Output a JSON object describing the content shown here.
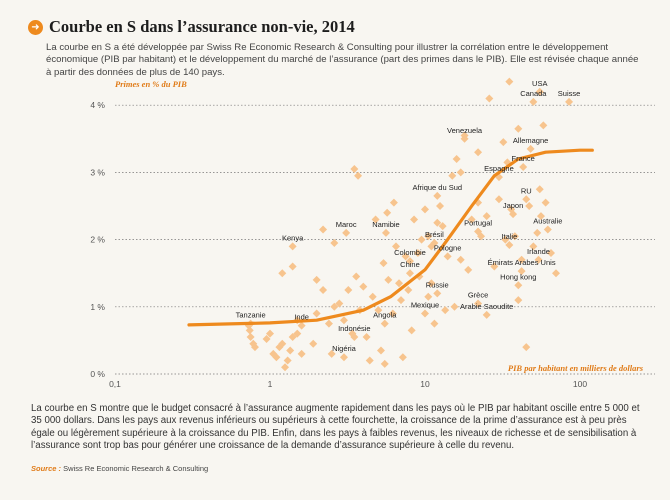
{
  "header": {
    "icon": "arrow-right-circle-icon",
    "title": "Courbe en S dans l’assurance non-vie, 2014",
    "intro": "La courbe en S a été développée par Swiss Re Economic Research & Consulting pour illustrer la corrélation entre le développement économique (PIB par habitant) et le développement du marché de l’assurance (part des primes dans le PIB). Elle est révisée chaque année à partir des données de plus de 140 pays."
  },
  "footer": {
    "text": "La courbe en S montre que le budget consacré à l’assurance augmente rapidement dans les pays où le PIB par habitant oscille entre 5 000 et 35 000 dollars. Dans les pays aux revenus inférieurs ou supérieurs à cette fourchette, la croissance de la prime d’assurance est à peu près égale ou légèrement supérieure à la croissance du PIB. Enfin, dans les pays à faibles revenus, les niveaux de richesse et de sensibilisation à l’assurance sont trop bas pour générer une croissance de la demande d’assurance supérieure à celle du revenu.",
    "source_label": "Source :",
    "source_text": "Swiss Re Economic Research & Consulting"
  },
  "colors": {
    "accent": "#ee8a1e",
    "points": "#f7c48e",
    "curve": "#ee8a1e",
    "grid": "#777777"
  },
  "chart_data": {
    "type": "scatter",
    "title": "Courbe en S dans l’assurance non-vie, 2014",
    "xlabel": "PIB par habitant en milliers de dollars",
    "ylabel": "Primes en % du PIB",
    "xscale": "log",
    "xlim": [
      0.1,
      200
    ],
    "ylim": [
      0,
      4.3
    ],
    "xticks": [
      {
        "v": 0.1,
        "label": "0,1"
      },
      {
        "v": 1,
        "label": "1"
      },
      {
        "v": 10,
        "label": "10"
      },
      {
        "v": 100,
        "label": "100"
      }
    ],
    "yticks": [
      {
        "v": 0,
        "label": "0 %"
      },
      {
        "v": 1,
        "label": "1 %"
      },
      {
        "v": 2,
        "label": "2 %"
      },
      {
        "v": 3,
        "label": "3 %"
      },
      {
        "v": 4,
        "label": "4 %"
      }
    ],
    "grid": "horizontal dashed",
    "curve": [
      [
        0.3,
        0.73
      ],
      [
        1,
        0.76
      ],
      [
        2,
        0.8
      ],
      [
        4,
        0.95
      ],
      [
        6,
        1.15
      ],
      [
        10,
        1.55
      ],
      [
        14,
        2.0
      ],
      [
        20,
        2.5
      ],
      [
        28,
        2.95
      ],
      [
        40,
        3.2
      ],
      [
        60,
        3.3
      ],
      [
        100,
        3.33
      ],
      [
        120,
        3.33
      ]
    ],
    "labeled_points": [
      {
        "name": "USA",
        "x": 55,
        "y": 4.2
      },
      {
        "name": "Canada",
        "x": 50,
        "y": 4.05
      },
      {
        "name": "Suisse",
        "x": 85,
        "y": 4.05
      },
      {
        "name": "Venezuela",
        "x": 18,
        "y": 3.5
      },
      {
        "name": "Allemagne",
        "x": 48,
        "y": 3.35
      },
      {
        "name": "France",
        "x": 43,
        "y": 3.08
      },
      {
        "name": "Espagne",
        "x": 30,
        "y": 2.93
      },
      {
        "name": "Afrique du Sud",
        "x": 12,
        "y": 2.65
      },
      {
        "name": "RU",
        "x": 45,
        "y": 2.6
      },
      {
        "name": "Japon",
        "x": 37,
        "y": 2.38
      },
      {
        "name": "Australie",
        "x": 62,
        "y": 2.15
      },
      {
        "name": "Maroc",
        "x": 3.1,
        "y": 2.1
      },
      {
        "name": "Namibie",
        "x": 5.6,
        "y": 2.1
      },
      {
        "name": "Portugal",
        "x": 22,
        "y": 2.12
      },
      {
        "name": "Brésil",
        "x": 11.5,
        "y": 1.95
      },
      {
        "name": "Italie",
        "x": 35,
        "y": 1.92
      },
      {
        "name": "Kenya",
        "x": 1.4,
        "y": 1.9
      },
      {
        "name": "Pologne",
        "x": 14,
        "y": 1.75
      },
      {
        "name": "Irlande",
        "x": 54,
        "y": 1.7
      },
      {
        "name": "Colombie",
        "x": 8,
        "y": 1.68
      },
      {
        "name": "Émirats Arabes Unis",
        "x": 42,
        "y": 1.53
      },
      {
        "name": "Chine",
        "x": 8,
        "y": 1.5
      },
      {
        "name": "Hong kong",
        "x": 40,
        "y": 1.32
      },
      {
        "name": "Russie",
        "x": 12,
        "y": 1.2
      },
      {
        "name": "Grèce",
        "x": 22,
        "y": 1.05
      },
      {
        "name": "Mexique",
        "x": 10,
        "y": 0.9
      },
      {
        "name": "Arabie Saoudite",
        "x": 25,
        "y": 0.88
      },
      {
        "name": "Tanzanie",
        "x": 0.75,
        "y": 0.75
      },
      {
        "name": "Inde",
        "x": 1.6,
        "y": 0.72
      },
      {
        "name": "Angola",
        "x": 5.5,
        "y": 0.75
      },
      {
        "name": "Indonésie",
        "x": 3.5,
        "y": 0.55
      },
      {
        "name": "Nigéria",
        "x": 3,
        "y": 0.25
      }
    ],
    "unlabeled_points": [
      [
        0.73,
        0.72
      ],
      [
        0.74,
        0.65
      ],
      [
        0.75,
        0.55
      ],
      [
        0.78,
        0.45
      ],
      [
        0.8,
        0.4
      ],
      [
        0.95,
        0.52
      ],
      [
        1.0,
        0.6
      ],
      [
        1.05,
        0.3
      ],
      [
        1.1,
        0.25
      ],
      [
        1.15,
        0.4
      ],
      [
        1.2,
        0.45
      ],
      [
        1.25,
        0.1
      ],
      [
        1.3,
        0.2
      ],
      [
        1.35,
        0.35
      ],
      [
        1.4,
        0.55
      ],
      [
        1.5,
        0.8
      ],
      [
        1.5,
        0.6
      ],
      [
        1.6,
        0.3
      ],
      [
        1.9,
        0.45
      ],
      [
        2.0,
        0.9
      ],
      [
        2.2,
        1.25
      ],
      [
        2.4,
        0.75
      ],
      [
        2.6,
        1.0
      ],
      [
        2.8,
        1.05
      ],
      [
        3.0,
        0.8
      ],
      [
        3.2,
        1.25
      ],
      [
        3.4,
        0.6
      ],
      [
        3.6,
        1.45
      ],
      [
        3.8,
        0.95
      ],
      [
        4.0,
        1.3
      ],
      [
        4.2,
        0.55
      ],
      [
        4.4,
        0.2
      ],
      [
        4.6,
        1.15
      ],
      [
        5.0,
        0.95
      ],
      [
        5.2,
        0.35
      ],
      [
        5.4,
        1.65
      ],
      [
        5.5,
        0.15
      ],
      [
        5.8,
        1.4
      ],
      [
        6.2,
        0.9
      ],
      [
        6.5,
        1.9
      ],
      [
        6.8,
        1.35
      ],
      [
        7.2,
        0.25
      ],
      [
        7.5,
        1.75
      ],
      [
        8.5,
        2.3
      ],
      [
        9.0,
        1.8
      ],
      [
        9.5,
        2.0
      ],
      [
        10.0,
        2.45
      ],
      [
        10.5,
        1.15
      ],
      [
        11.0,
        1.9
      ],
      [
        11.5,
        0.75
      ],
      [
        12.5,
        2.5
      ],
      [
        13.0,
        2.2
      ],
      [
        13.5,
        0.95
      ],
      [
        15.0,
        2.95
      ],
      [
        16.0,
        3.2
      ],
      [
        17.0,
        1.7
      ],
      [
        18.0,
        3.55
      ],
      [
        19.0,
        1.55
      ],
      [
        20.0,
        2.3
      ],
      [
        22.0,
        2.55
      ],
      [
        23.0,
        2.05
      ],
      [
        25.0,
        2.35
      ],
      [
        26.0,
        4.1
      ],
      [
        28.0,
        1.6
      ],
      [
        30.0,
        2.6
      ],
      [
        32.0,
        3.45
      ],
      [
        33.0,
        2.0
      ],
      [
        34.0,
        3.15
      ],
      [
        36.0,
        2.45
      ],
      [
        38.0,
        2.05
      ],
      [
        40.0,
        3.65
      ],
      [
        42.0,
        1.7
      ],
      [
        45.0,
        0.4
      ],
      [
        47.0,
        2.5
      ],
      [
        50.0,
        1.9
      ],
      [
        53.0,
        2.1
      ],
      [
        56.0,
        2.35
      ],
      [
        58.0,
        3.7
      ],
      [
        60.0,
        2.55
      ],
      [
        65.0,
        1.8
      ],
      [
        70.0,
        1.5
      ],
      [
        22.0,
        3.3
      ],
      [
        17.0,
        3.0
      ],
      [
        3.5,
        3.05
      ],
      [
        3.7,
        2.95
      ],
      [
        2.2,
        2.15
      ],
      [
        2.6,
        1.95
      ],
      [
        1.2,
        1.5
      ],
      [
        1.4,
        1.6
      ],
      [
        4.8,
        2.3
      ],
      [
        5.7,
        2.4
      ],
      [
        6.3,
        2.55
      ],
      [
        7.0,
        1.1
      ],
      [
        7.8,
        1.25
      ],
      [
        8.2,
        0.65
      ],
      [
        9.2,
        1.45
      ],
      [
        2.0,
        1.4
      ],
      [
        2.5,
        0.3
      ],
      [
        12.0,
        2.25
      ],
      [
        11.0,
        1.35
      ],
      [
        15.5,
        1.0
      ],
      [
        35.0,
        4.35
      ],
      [
        40.0,
        1.1
      ],
      [
        55.0,
        2.75
      ],
      [
        10.5,
        2.05
      ]
    ]
  }
}
